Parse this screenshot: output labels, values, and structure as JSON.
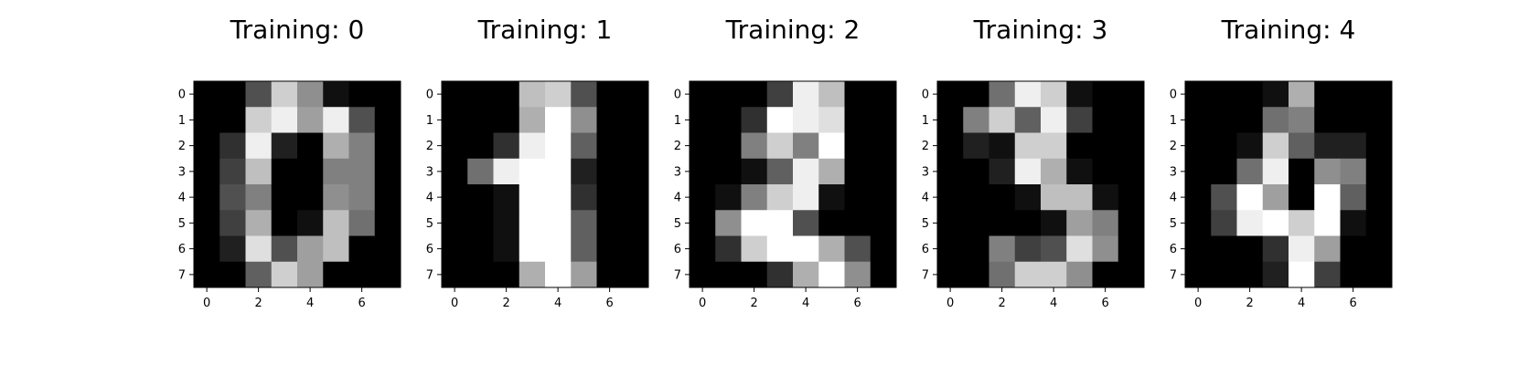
{
  "colors": {
    "colormap": "gray_r",
    "background": "#ffffff",
    "frame": "#000000"
  },
  "chart_data": [
    {
      "type": "heatmap",
      "title": "Training: 0",
      "x_ticks": [
        "0",
        "2",
        "4",
        "6"
      ],
      "y_ticks": [
        "0",
        "1",
        "2",
        "3",
        "4",
        "5",
        "6",
        "7"
      ],
      "values": [
        [
          0,
          0,
          5,
          13,
          9,
          1,
          0,
          0
        ],
        [
          0,
          0,
          13,
          15,
          10,
          15,
          5,
          0
        ],
        [
          0,
          3,
          15,
          2,
          0,
          11,
          8,
          0
        ],
        [
          0,
          4,
          12,
          0,
          0,
          8,
          8,
          0
        ],
        [
          0,
          5,
          8,
          0,
          0,
          9,
          8,
          0
        ],
        [
          0,
          4,
          11,
          0,
          1,
          12,
          7,
          0
        ],
        [
          0,
          2,
          14,
          5,
          10,
          12,
          0,
          0
        ],
        [
          0,
          0,
          6,
          13,
          10,
          0,
          0,
          0
        ]
      ]
    },
    {
      "type": "heatmap",
      "title": "Training: 1",
      "x_ticks": [
        "0",
        "2",
        "4",
        "6"
      ],
      "y_ticks": [
        "0",
        "1",
        "2",
        "3",
        "4",
        "5",
        "6",
        "7"
      ],
      "values": [
        [
          0,
          0,
          0,
          12,
          13,
          5,
          0,
          0
        ],
        [
          0,
          0,
          0,
          11,
          16,
          9,
          0,
          0
        ],
        [
          0,
          0,
          3,
          15,
          16,
          6,
          0,
          0
        ],
        [
          0,
          7,
          15,
          16,
          16,
          2,
          0,
          0
        ],
        [
          0,
          0,
          1,
          16,
          16,
          3,
          0,
          0
        ],
        [
          0,
          0,
          1,
          16,
          16,
          6,
          0,
          0
        ],
        [
          0,
          0,
          1,
          16,
          16,
          6,
          0,
          0
        ],
        [
          0,
          0,
          0,
          11,
          16,
          10,
          0,
          0
        ]
      ]
    },
    {
      "type": "heatmap",
      "title": "Training: 2",
      "x_ticks": [
        "0",
        "2",
        "4",
        "6"
      ],
      "y_ticks": [
        "0",
        "1",
        "2",
        "3",
        "4",
        "5",
        "6",
        "7"
      ],
      "values": [
        [
          0,
          0,
          0,
          4,
          15,
          12,
          0,
          0
        ],
        [
          0,
          0,
          3,
          16,
          15,
          14,
          0,
          0
        ],
        [
          0,
          0,
          8,
          13,
          8,
          16,
          0,
          0
        ],
        [
          0,
          0,
          1,
          6,
          15,
          11,
          0,
          0
        ],
        [
          0,
          1,
          8,
          13,
          15,
          1,
          0,
          0
        ],
        [
          0,
          9,
          16,
          16,
          5,
          0,
          0,
          0
        ],
        [
          0,
          3,
          13,
          16,
          16,
          11,
          5,
          0
        ],
        [
          0,
          0,
          0,
          3,
          11,
          16,
          9,
          0
        ]
      ]
    },
    {
      "type": "heatmap",
      "title": "Training: 3",
      "x_ticks": [
        "0",
        "2",
        "4",
        "6"
      ],
      "y_ticks": [
        "0",
        "1",
        "2",
        "3",
        "4",
        "5",
        "6",
        "7"
      ],
      "values": [
        [
          0,
          0,
          7,
          15,
          13,
          1,
          0,
          0
        ],
        [
          0,
          8,
          13,
          6,
          15,
          4,
          0,
          0
        ],
        [
          0,
          2,
          1,
          13,
          13,
          0,
          0,
          0
        ],
        [
          0,
          0,
          2,
          15,
          11,
          1,
          0,
          0
        ],
        [
          0,
          0,
          0,
          1,
          12,
          12,
          1,
          0
        ],
        [
          0,
          0,
          0,
          0,
          1,
          10,
          8,
          0
        ],
        [
          0,
          0,
          8,
          4,
          5,
          14,
          9,
          0
        ],
        [
          0,
          0,
          7,
          13,
          13,
          9,
          0,
          0
        ]
      ]
    },
    {
      "type": "heatmap",
      "title": "Training: 4",
      "x_ticks": [
        "0",
        "2",
        "4",
        "6"
      ],
      "y_ticks": [
        "0",
        "1",
        "2",
        "3",
        "4",
        "5",
        "6",
        "7"
      ],
      "values": [
        [
          0,
          0,
          0,
          1,
          11,
          0,
          0,
          0
        ],
        [
          0,
          0,
          0,
          7,
          8,
          0,
          0,
          0
        ],
        [
          0,
          0,
          1,
          13,
          6,
          2,
          2,
          0
        ],
        [
          0,
          0,
          7,
          15,
          0,
          9,
          8,
          0
        ],
        [
          0,
          5,
          16,
          10,
          0,
          16,
          6,
          0
        ],
        [
          0,
          4,
          15,
          16,
          13,
          16,
          1,
          0
        ],
        [
          0,
          0,
          0,
          3,
          15,
          10,
          0,
          0
        ],
        [
          0,
          0,
          0,
          2,
          16,
          4,
          0,
          0
        ]
      ]
    }
  ]
}
